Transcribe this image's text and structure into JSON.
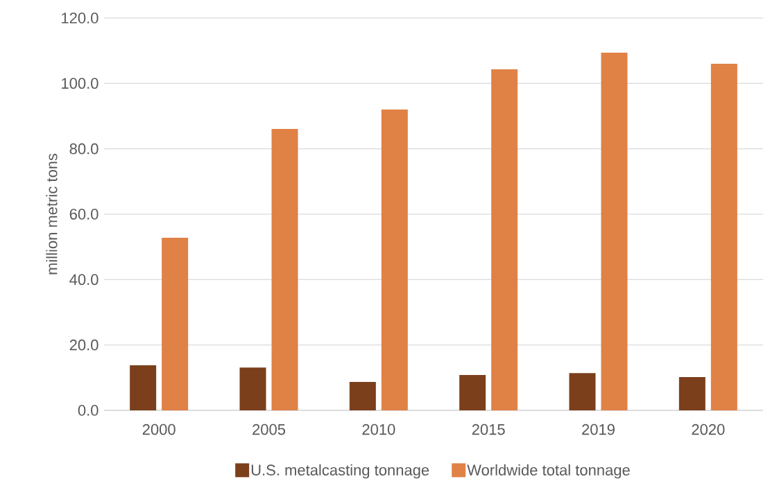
{
  "chart_data": {
    "type": "bar",
    "ylabel": "million metric tons",
    "categories": [
      "2000",
      "2005",
      "2010",
      "2015",
      "2019",
      "2020"
    ],
    "series": [
      {
        "name": "U.S. metalcasting tonnage",
        "color": "#7b3f1c",
        "values": [
          13.8,
          13.1,
          8.7,
          10.8,
          11.4,
          10.2
        ]
      },
      {
        "name": "Worldwide total tonnage",
        "color": "#e08146",
        "values": [
          52.8,
          86.1,
          92.0,
          104.3,
          109.4,
          106.0
        ]
      }
    ],
    "ylim": [
      0,
      120
    ],
    "yticks": [
      {
        "value": 0,
        "label": "0.0"
      },
      {
        "value": 20,
        "label": "20.0"
      },
      {
        "value": 40,
        "label": "40.0"
      },
      {
        "value": 60,
        "label": "60.0"
      },
      {
        "value": 80,
        "label": "80.0"
      },
      {
        "value": 100,
        "label": "100.0"
      },
      {
        "value": 120,
        "label": "120.0"
      }
    ],
    "grid": "y",
    "legend": "bottom"
  }
}
